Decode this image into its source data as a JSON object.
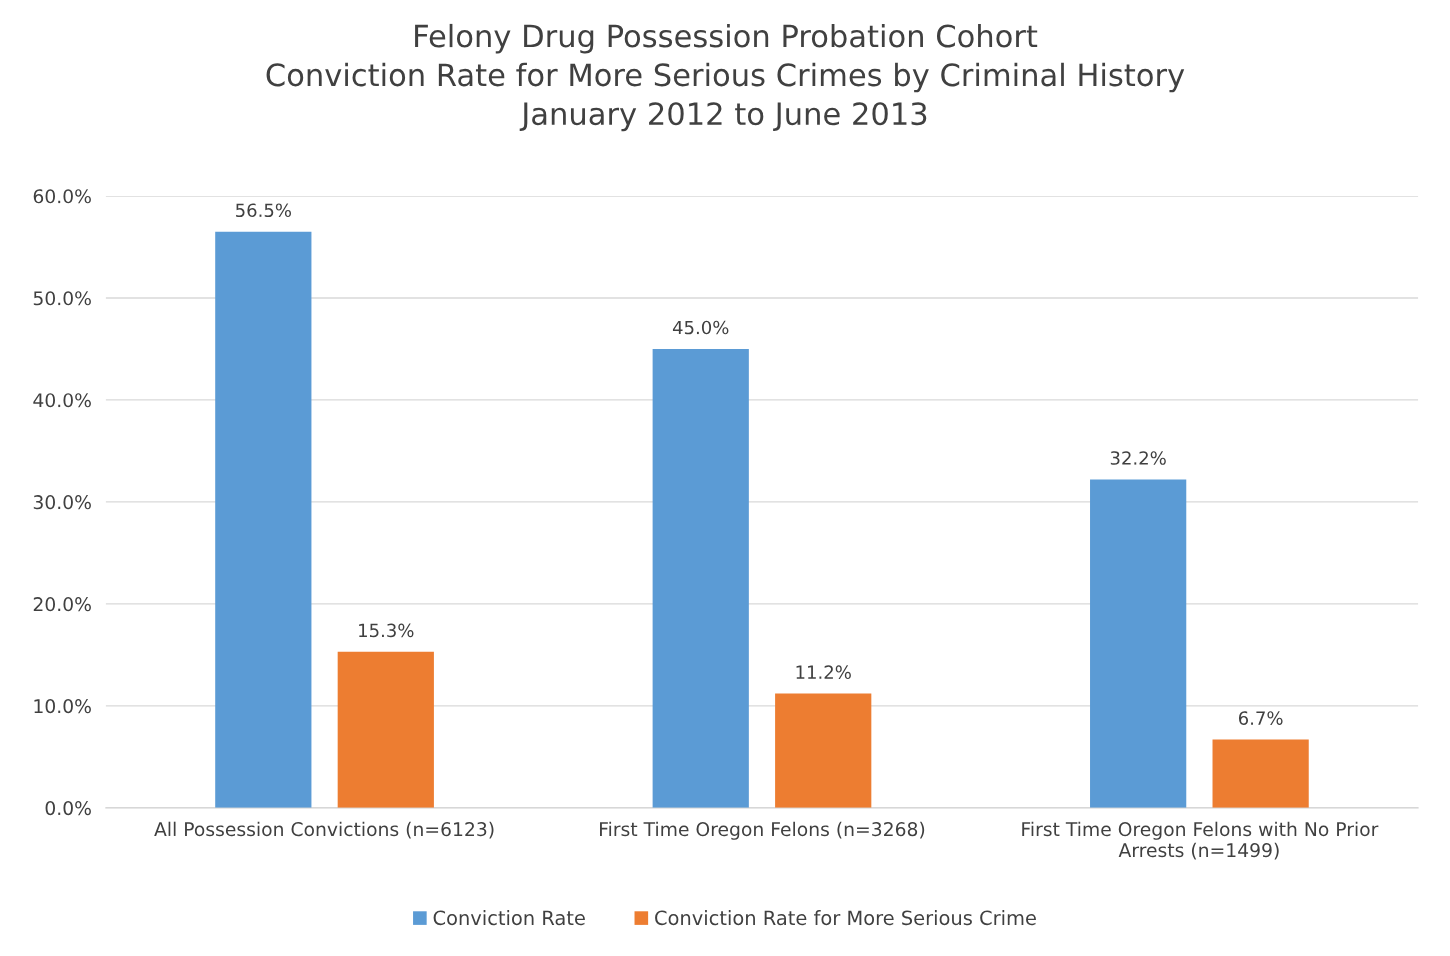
{
  "chart_data": {
    "type": "bar",
    "title": "Felony Drug Possession Probation Cohort\nConviction Rate for More Serious Crimes by Criminal History\nJanuary 2012 to June 2013",
    "categories": [
      "All Possession Convictions (n=6123)",
      "First Time Oregon Felons (n=3268)",
      "First Time Oregon Felons with No Prior Arrests (n=1499)"
    ],
    "series": [
      {
        "name": "Conviction Rate",
        "color": "#5b9bd5",
        "values": [
          56.5,
          45.0,
          32.2
        ],
        "value_labels": [
          "56.5%",
          "45.0%",
          "32.2%"
        ]
      },
      {
        "name": "Conviction Rate for More Serious Crime",
        "color": "#ed7d31",
        "values": [
          15.3,
          11.2,
          6.7
        ],
        "value_labels": [
          "15.3%",
          "11.2%",
          "6.7%"
        ]
      }
    ],
    "ylim": [
      0,
      60
    ],
    "yticks": [
      {
        "value": 0,
        "label": "0.0%"
      },
      {
        "value": 10,
        "label": "10.0%"
      },
      {
        "value": 20,
        "label": "20.0%"
      },
      {
        "value": 30,
        "label": "30.0%"
      },
      {
        "value": 40,
        "label": "40.0%"
      },
      {
        "value": 50,
        "label": "50.0%"
      },
      {
        "value": 60,
        "label": "60.0%"
      }
    ],
    "grid": "y",
    "legend": "bottom"
  }
}
